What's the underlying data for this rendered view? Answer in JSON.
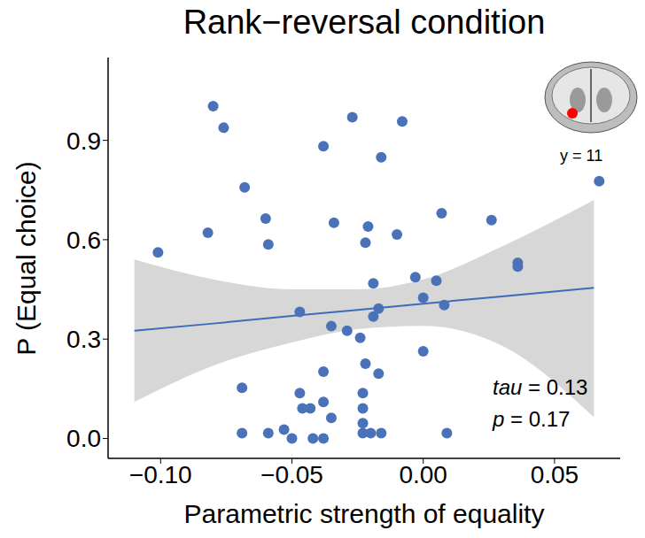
{
  "chart_data": {
    "type": "scatter",
    "title": "Rank−reversal condition",
    "x_label": "Parametric strength of equality",
    "y_label": "P (Equal choice)",
    "x": [
      -0.101,
      -0.08,
      -0.076,
      -0.082,
      -0.068,
      -0.06,
      -0.059,
      -0.069,
      -0.069,
      -0.059,
      -0.053,
      -0.05,
      -0.047,
      -0.047,
      -0.046,
      -0.043,
      -0.042,
      -0.038,
      -0.038,
      -0.038,
      -0.038,
      -0.035,
      -0.035,
      -0.034,
      -0.029,
      -0.027,
      -0.024,
      -0.023,
      -0.023,
      -0.023,
      -0.023,
      -0.022,
      -0.022,
      -0.021,
      -0.02,
      -0.019,
      -0.019,
      -0.017,
      -0.017,
      -0.016,
      -0.016,
      -0.01,
      -0.008,
      -0.003,
      0.0,
      0.0,
      0.005,
      0.007,
      0.008,
      0.009,
      0.026,
      0.036,
      0.036,
      0.067
    ],
    "values": [
      0.562,
      1.003,
      0.938,
      0.621,
      0.758,
      0.664,
      0.586,
      0.153,
      0.016,
      0.016,
      0.027,
      0.0,
      0.382,
      0.137,
      0.091,
      0.091,
      0.0,
      0.0,
      0.11,
      0.202,
      0.882,
      0.062,
      0.339,
      0.651,
      0.325,
      0.97,
      0.304,
      0.137,
      0.091,
      0.046,
      0.016,
      0.226,
      0.591,
      0.64,
      0.016,
      0.468,
      0.368,
      0.392,
      0.196,
      0.016,
      0.849,
      0.616,
      0.957,
      0.487,
      0.425,
      0.263,
      0.476,
      0.68,
      0.403,
      0.016,
      0.659,
      0.53,
      0.519,
      0.777
    ],
    "color": "#4a72b8",
    "marker": "circle",
    "xlim": [
      -0.12,
      0.075
    ],
    "ylim": [
      -0.06,
      1.15
    ],
    "xticks": [
      {
        "value": -0.1,
        "label": "−0.10"
      },
      {
        "value": -0.05,
        "label": "−0.05"
      },
      {
        "value": 0,
        "label": "0.00"
      },
      {
        "value": 0.05,
        "label": "0.05"
      }
    ],
    "yticks": [
      {
        "value": 0,
        "label": "0.0"
      },
      0.3,
      0.6,
      0.9
    ],
    "grid": false,
    "fit": {
      "x": [
        -0.11,
        -0.08,
        -0.05,
        -0.025,
        0,
        0.03,
        0.065
      ],
      "y": [
        0.325,
        0.347,
        0.37,
        0.388,
        0.407,
        0.429,
        0.455
      ],
      "lower": [
        0.11,
        0.22,
        0.29,
        0.33,
        0.34,
        0.28,
        0.065
      ],
      "upper": [
        0.54,
        0.48,
        0.45,
        0.45,
        0.48,
        0.58,
        0.72
      ],
      "color": "#3d6cb9",
      "band_color": "#d3d3d3"
    },
    "annotations": [
      "tau = 0.13",
      "p = 0.17"
    ],
    "inset": {
      "label": "y = 11",
      "marker_color": "#ff0000"
    }
  }
}
